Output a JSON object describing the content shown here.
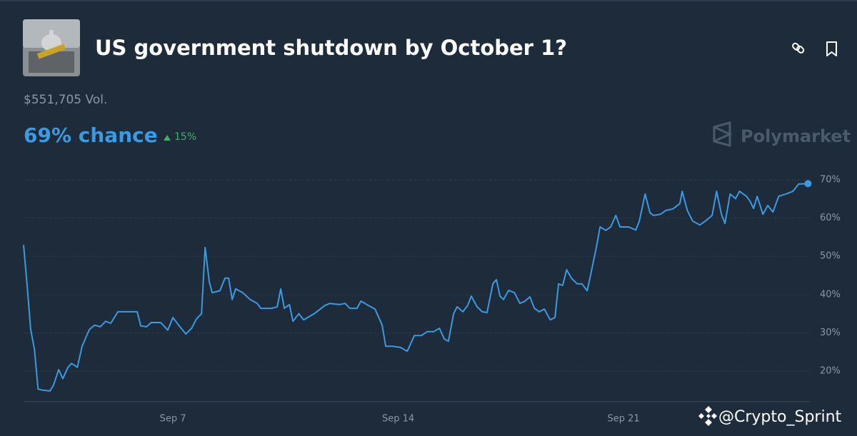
{
  "header": {
    "title": "US government shutdown by October 1?",
    "volume": "$551,705 Vol.",
    "chance": "69% chance",
    "change": "15%",
    "brand": "Polymarket"
  },
  "watermark": "@Crypto_Sprint",
  "chart_data": {
    "type": "line",
    "color": "#3b9ae1",
    "grid": true,
    "x": [
      2.36,
      2.47,
      2.58,
      2.7,
      2.81,
      2.96,
      3.18,
      3.29,
      3.45,
      3.58,
      3.74,
      3.85,
      4.03,
      4.18,
      4.4,
      4.56,
      4.74,
      4.91,
      5.07,
      5.29,
      5.51,
      5.89,
      6.0,
      6.18,
      6.33,
      6.62,
      6.84,
      7.0,
      7.18,
      7.4,
      7.58,
      7.73,
      7.89,
      8.0,
      8.13,
      8.22,
      8.46,
      8.62,
      8.73,
      8.84,
      8.95,
      9.17,
      9.4,
      9.62,
      9.73,
      10.06,
      10.24,
      10.35,
      10.46,
      10.62,
      10.73,
      10.91,
      11.06,
      11.39,
      11.73,
      11.88,
      12.17,
      12.35,
      12.5,
      12.72,
      12.84,
      13.06,
      13.28,
      13.5,
      13.61,
      13.83,
      14.06,
      14.28,
      14.5,
      14.72,
      14.9,
      15.1,
      15.28,
      15.43,
      15.56,
      15.72,
      15.83,
      16.01,
      16.16,
      16.27,
      16.45,
      16.61,
      16.76,
      16.94,
      17.05,
      17.16,
      17.27,
      17.43,
      17.61,
      17.78,
      17.94,
      18.09,
      18.23,
      18.38,
      18.54,
      18.72,
      18.87,
      18.98,
      19.11,
      19.23,
      19.38,
      19.56,
      19.71,
      19.87,
      20.0,
      20.16,
      20.27,
      20.45,
      20.6,
      20.76,
      20.89,
      21.16,
      21.38,
      21.49,
      21.67,
      21.82,
      21.93,
      22.15,
      22.31,
      22.53,
      22.75,
      22.82,
      22.98,
      23.15,
      23.37,
      23.6,
      23.75,
      23.89,
      24.04,
      24.15,
      24.31,
      24.48,
      24.6,
      24.82,
      24.93,
      25.04,
      25.15,
      25.33,
      25.48,
      25.64,
      25.82,
      26.04,
      26.26,
      26.44,
      26.73
    ],
    "values": [
      53,
      42.4,
      31,
      25.6,
      15.3,
      15,
      14.8,
      16.3,
      20.4,
      18,
      21,
      22,
      21,
      26.5,
      30.8,
      32,
      31.6,
      33,
      32.5,
      35.5,
      35.5,
      35.5,
      31.8,
      31.6,
      32.7,
      32.7,
      30.7,
      34,
      32,
      29.7,
      31.2,
      33.6,
      35,
      52.3,
      43.3,
      40.5,
      41,
      44.3,
      44.3,
      38.7,
      41.5,
      40.5,
      38.7,
      37.7,
      36.4,
      36.4,
      36.8,
      41.5,
      36.4,
      37.4,
      33,
      35,
      33.4,
      35,
      37.2,
      37.7,
      37.4,
      37.7,
      36.4,
      36.4,
      38.3,
      37.2,
      36.2,
      32,
      26.5,
      26.5,
      26.2,
      25.2,
      29.3,
      29.3,
      30.3,
      30.3,
      31.2,
      28.4,
      27.8,
      35,
      36.8,
      35.5,
      37.2,
      39.6,
      36.8,
      35.5,
      35.3,
      42.8,
      43.9,
      39.6,
      38.7,
      41.1,
      40.5,
      37.7,
      38.3,
      39.4,
      36.4,
      35.5,
      36.2,
      33.4,
      34,
      42.8,
      42.4,
      46.5,
      44.3,
      42.8,
      42.8,
      41,
      46.1,
      52.6,
      57.7,
      56.8,
      57.7,
      60.7,
      57.7,
      57.7,
      56.9,
      59.2,
      66.3,
      61.4,
      60.7,
      61,
      62,
      62.4,
      63.8,
      67,
      62,
      59.2,
      58.2,
      59.6,
      60.7,
      67,
      61,
      58.6,
      66.3,
      65.1,
      67,
      65.7,
      64.4,
      62.5,
      65.7,
      61,
      63.3,
      61.6,
      65.7,
      66.3,
      67,
      68.9,
      69
    ],
    "xlim": [
      2.36,
      26.81
    ],
    "xticks": [
      {
        "value": 7,
        "label": "Sep 7"
      },
      {
        "value": 14,
        "label": "Sep 14"
      },
      {
        "value": 21,
        "label": "Sep 21"
      }
    ],
    "ylim": [
      12,
      74
    ],
    "yticks": [
      {
        "value": 20,
        "label": "20%"
      },
      {
        "value": 30,
        "label": "30%"
      },
      {
        "value": 40,
        "label": "40%"
      },
      {
        "value": 50,
        "label": "50%"
      },
      {
        "value": 60,
        "label": "60%"
      },
      {
        "value": 70,
        "label": "70%"
      }
    ]
  }
}
